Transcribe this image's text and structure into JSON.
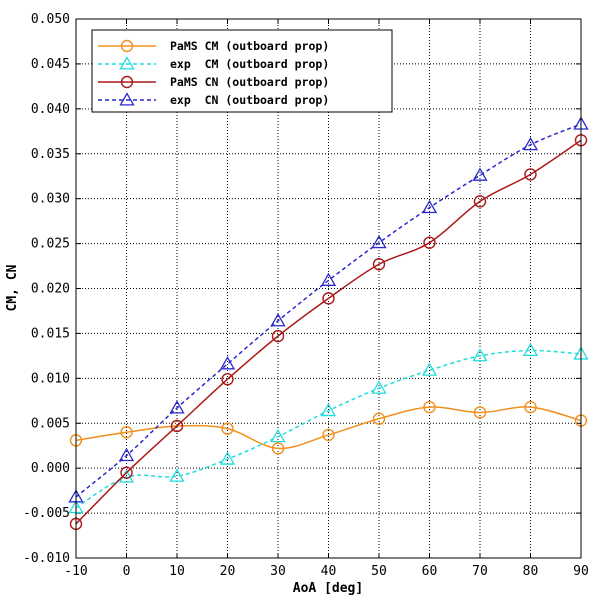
{
  "chart_data": {
    "type": "line",
    "xlabel": "AoA [deg]",
    "ylabel": "CM, CN",
    "xlim": [
      -10,
      90
    ],
    "ylim": [
      -0.01,
      0.05
    ],
    "xticks": [
      "-10",
      "0",
      "10",
      "20",
      "30",
      "40",
      "50",
      "60",
      "70",
      "80",
      "90"
    ],
    "yticks": [
      "-0.010",
      "-0.005",
      "0.000",
      "0.005",
      "0.010",
      "0.015",
      "0.020",
      "0.025",
      "0.030",
      "0.035",
      "0.040",
      "0.045",
      "0.050"
    ],
    "grid": true,
    "legend_position": "top-left",
    "x": [
      -10,
      0,
      10,
      20,
      30,
      40,
      50,
      60,
      70,
      80,
      90
    ],
    "series": [
      {
        "name": "PaMS CM (outboard prop)",
        "color": "#f0901e",
        "marker": "circle",
        "line": "solid",
        "values": [
          0.0031,
          0.004,
          0.0047,
          0.0044,
          0.0022,
          0.0037,
          0.0055,
          0.0068,
          0.0062,
          0.0068,
          0.0053
        ]
      },
      {
        "name": "exp  CM (outboard prop)",
        "color": "#22dcdc",
        "marker": "triangle",
        "line": "dashed",
        "values": [
          -0.0044,
          -0.001,
          -0.0009,
          0.001,
          0.0035,
          0.0064,
          0.0089,
          0.0109,
          0.0125,
          0.0131,
          0.0127
        ]
      },
      {
        "name": "PaMS CN (outboard prop)",
        "color": "#aa1a1a",
        "marker": "circle",
        "line": "solid",
        "values": [
          -0.0062,
          -0.0005,
          0.0047,
          0.0099,
          0.0147,
          0.0189,
          0.0227,
          0.0251,
          0.0297,
          0.0327,
          0.0365
        ]
      },
      {
        "name": "exp  CN (outboard prop)",
        "color": "#2a2acc",
        "marker": "triangle",
        "line": "dashed",
        "values": [
          -0.0032,
          0.0014,
          0.0067,
          0.0116,
          0.0164,
          0.0209,
          0.0251,
          0.029,
          0.0326,
          0.036,
          0.0383
        ]
      }
    ]
  }
}
